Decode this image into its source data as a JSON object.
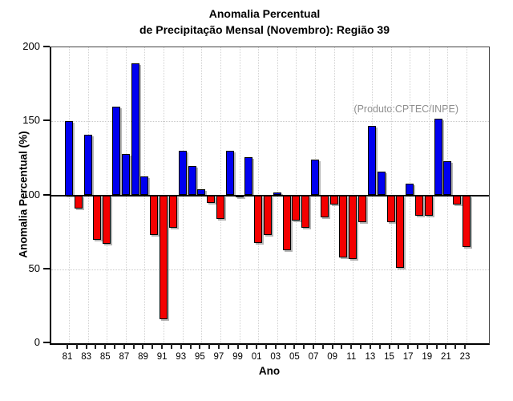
{
  "title": {
    "line1": "Anomalia Percentual",
    "line2": "de Precipitação Mensal (Novembro): Região 39"
  },
  "annotation": "(Produto:CPTEC/INPE)",
  "chart_data": {
    "type": "bar",
    "title": "Anomalia Percentual de Precipitação Mensal (Novembro): Região 39",
    "xlabel": "Ano",
    "ylabel": "Anomalia Percentual (%)",
    "ylim": [
      0,
      200
    ],
    "yticks": [
      0,
      50,
      100,
      150,
      200
    ],
    "baseline": 100,
    "grid": true,
    "legend": "none",
    "categories": [
      "81",
      "82",
      "83",
      "84",
      "85",
      "86",
      "87",
      "88",
      "89",
      "90",
      "91",
      "92",
      "93",
      "94",
      "95",
      "96",
      "97",
      "98",
      "99",
      "00",
      "01",
      "02",
      "03",
      "04",
      "05",
      "06",
      "07",
      "08",
      "09",
      "10",
      "11",
      "12",
      "13",
      "14",
      "15",
      "16",
      "17",
      "18",
      "19",
      "20",
      "21",
      "22",
      "23"
    ],
    "values": [
      150,
      91,
      141,
      70,
      67,
      160,
      128,
      189,
      113,
      73,
      16,
      78,
      130,
      120,
      104,
      95,
      84,
      130,
      99,
      126,
      68,
      73,
      102,
      63,
      83,
      78,
      124,
      85,
      94,
      58,
      57,
      82,
      147,
      116,
      82,
      51,
      108,
      86,
      86,
      152,
      123,
      94,
      65
    ],
    "colors": {
      "above_baseline": "#0000f0",
      "below_baseline": "#f40000"
    }
  }
}
